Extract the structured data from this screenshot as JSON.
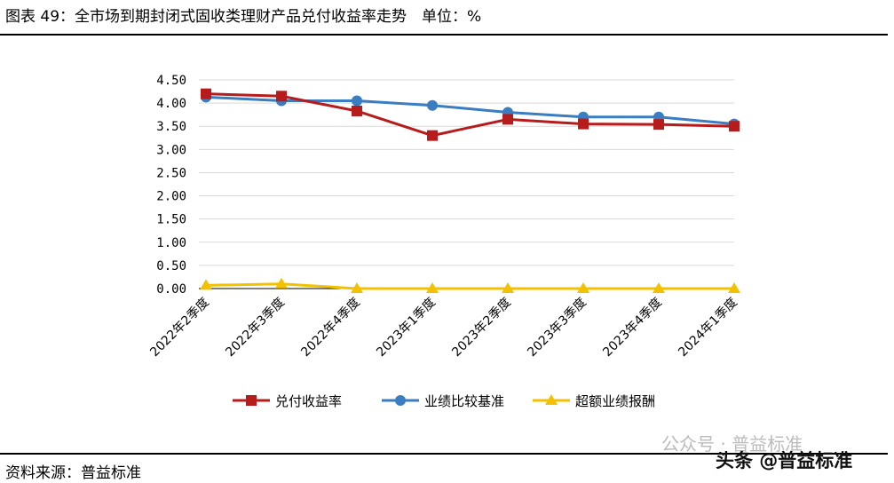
{
  "title": "图表 49：全市场到期封闭式固收类理财产品兑付收益率走势　单位：%",
  "source": "资料来源：普益标准",
  "watermark": {
    "wechat": "公众号 · 普益标准",
    "toutiao": "头条 @普益标准"
  },
  "chart_data": {
    "type": "line",
    "categories": [
      "2022年2季度",
      "2022年3季度",
      "2022年4季度",
      "2023年1季度",
      "2023年2季度",
      "2023年3季度",
      "2023年4季度",
      "2024年1季度"
    ],
    "ylim": [
      0,
      4.5
    ],
    "yticks": [
      "0.00",
      "0.50",
      "1.00",
      "1.50",
      "2.00",
      "2.50",
      "3.00",
      "3.50",
      "4.00",
      "4.50"
    ],
    "grid": true,
    "legend": "bottom",
    "series": [
      {
        "name": "兑付收益率",
        "color": "#B71C1C",
        "marker": "square",
        "values": [
          4.2,
          4.15,
          3.83,
          3.3,
          3.65,
          3.55,
          3.54,
          3.5
        ]
      },
      {
        "name": "业绩比较基准",
        "color": "#3A7DC0",
        "marker": "circle",
        "values": [
          4.13,
          4.05,
          4.05,
          3.95,
          3.8,
          3.7,
          3.7,
          3.55
        ]
      },
      {
        "name": "超额业绩报酬",
        "color": "#F2C200",
        "marker": "triangle",
        "values": [
          0.07,
          0.1,
          0,
          0,
          0,
          0,
          0,
          0
        ]
      }
    ]
  }
}
